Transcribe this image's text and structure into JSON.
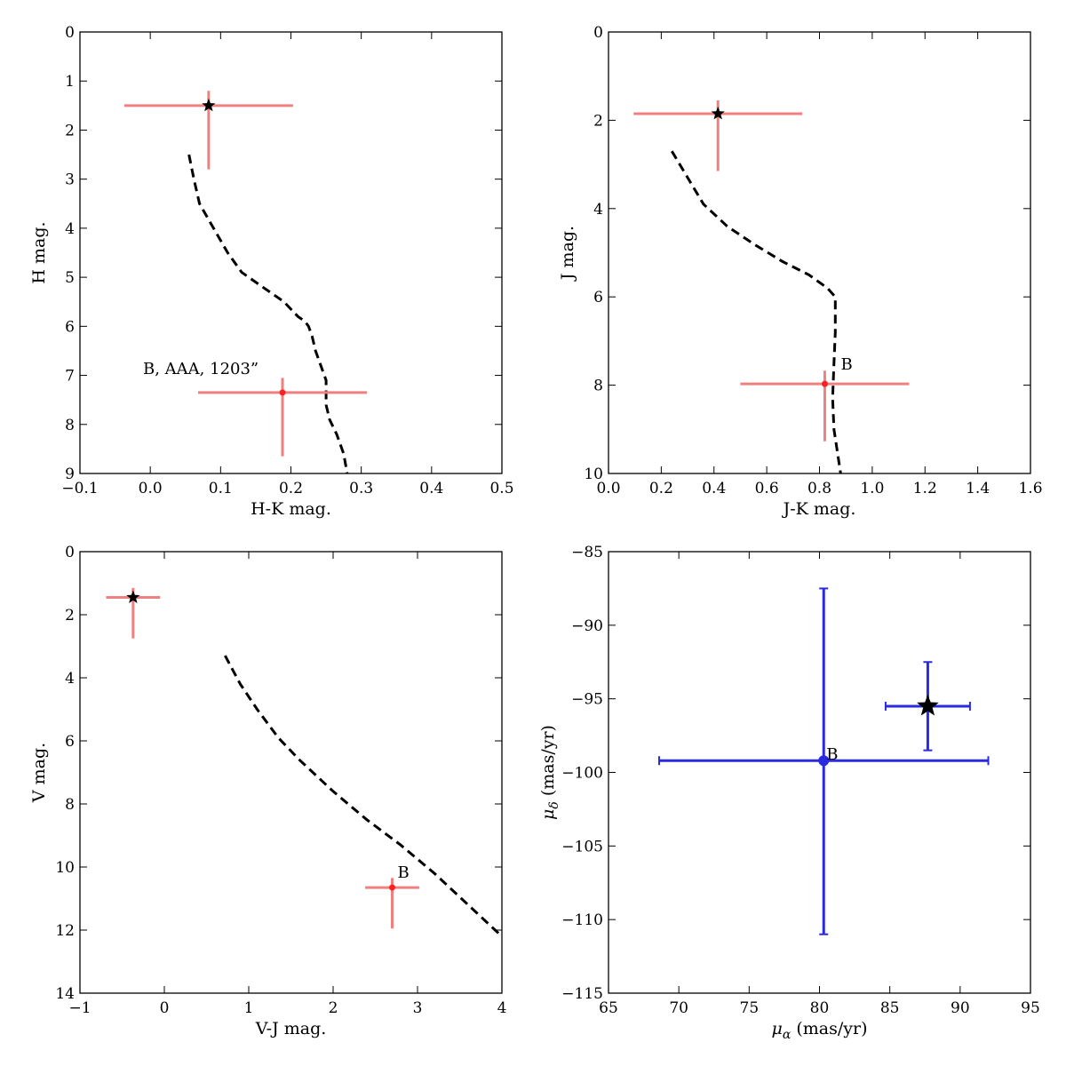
{
  "figure": {
    "title": ""
  },
  "chart_data": [
    {
      "id": "hk",
      "type": "scatter",
      "xlabel": "H-K mag.",
      "ylabel": "H mag.",
      "xlim": [
        -0.1,
        0.5
      ],
      "ylim": [
        0,
        9
      ],
      "y_inverted": true,
      "xticks": [
        -0.1,
        0.0,
        0.1,
        0.2,
        0.3,
        0.4,
        0.5
      ],
      "xtick_labels": [
        "−0.1",
        "0.0",
        "0.1",
        "0.2",
        "0.3",
        "0.4",
        "0.5"
      ],
      "yticks": [
        0,
        1,
        2,
        3,
        4,
        5,
        6,
        7,
        8,
        9
      ],
      "ytick_labels": [
        "0",
        "1",
        "2",
        "3",
        "4",
        "5",
        "6",
        "7",
        "8",
        "9"
      ],
      "curve": {
        "style": "dashed",
        "color": "#000000",
        "x": [
          0.055,
          0.062,
          0.07,
          0.09,
          0.11,
          0.13,
          0.16,
          0.19,
          0.21,
          0.22,
          0.225,
          0.23,
          0.235,
          0.245,
          0.25,
          0.25,
          0.255,
          0.265,
          0.275,
          0.28
        ],
        "y": [
          2.5,
          3.0,
          3.5,
          4.0,
          4.5,
          4.9,
          5.2,
          5.5,
          5.8,
          5.9,
          6.0,
          6.2,
          6.5,
          6.9,
          7.1,
          7.6,
          7.9,
          8.2,
          8.6,
          9.0
        ]
      },
      "points": [
        {
          "name": "primary",
          "marker": "star",
          "x": 0.083,
          "y": 1.5,
          "xerr": [
            0.12,
            0.12
          ],
          "yerr": [
            0.3,
            1.3
          ],
          "label": ""
        },
        {
          "name": "B",
          "marker": "dot",
          "x": 0.188,
          "y": 7.35,
          "xerr": [
            0.12,
            0.12
          ],
          "yerr": [
            0.3,
            1.3
          ],
          "label": "B, AAA, 1203”"
        }
      ],
      "error_color": "#f08080",
      "marker_color_dot": "#ff2020"
    },
    {
      "id": "jk",
      "type": "scatter",
      "xlabel": "J-K mag.",
      "ylabel": "J mag.",
      "xlim": [
        0.0,
        1.6
      ],
      "ylim": [
        0,
        10
      ],
      "y_inverted": true,
      "xticks": [
        0.0,
        0.2,
        0.4,
        0.6,
        0.8,
        1.0,
        1.2,
        1.4,
        1.6
      ],
      "xtick_labels": [
        "0.0",
        "0.2",
        "0.4",
        "0.6",
        "0.8",
        "1.0",
        "1.2",
        "1.4",
        "1.6"
      ],
      "yticks": [
        0,
        2,
        4,
        6,
        8,
        10
      ],
      "ytick_labels": [
        "0",
        "2",
        "4",
        "6",
        "8",
        "10"
      ],
      "curve": {
        "style": "dashed",
        "color": "#000000",
        "x": [
          0.24,
          0.3,
          0.36,
          0.45,
          0.55,
          0.66,
          0.76,
          0.83,
          0.86,
          0.86,
          0.855,
          0.85,
          0.855,
          0.87,
          0.88
        ],
        "y": [
          2.7,
          3.3,
          3.9,
          4.4,
          4.8,
          5.2,
          5.5,
          5.8,
          6.0,
          6.8,
          7.5,
          8.3,
          9.0,
          9.6,
          10.0
        ]
      },
      "points": [
        {
          "name": "primary",
          "marker": "star",
          "x": 0.415,
          "y": 1.85,
          "xerr": [
            0.32,
            0.32
          ],
          "yerr": [
            0.3,
            1.3
          ],
          "label": ""
        },
        {
          "name": "B",
          "marker": "dot",
          "x": 0.82,
          "y": 7.97,
          "xerr": [
            0.32,
            0.32
          ],
          "yerr": [
            0.3,
            1.3
          ],
          "label": "B"
        }
      ],
      "error_color": "#f08080",
      "marker_color_dot": "#ff2020"
    },
    {
      "id": "vj",
      "type": "scatter",
      "xlabel": "V-J mag.",
      "ylabel": "V mag.",
      "xlim": [
        -1,
        4
      ],
      "ylim": [
        0,
        14
      ],
      "y_inverted": true,
      "xticks": [
        -1,
        0,
        1,
        2,
        3,
        4
      ],
      "xtick_labels": [
        "−1",
        "0",
        "1",
        "2",
        "3",
        "4"
      ],
      "yticks": [
        0,
        2,
        4,
        6,
        8,
        10,
        12,
        14
      ],
      "ytick_labels": [
        "0",
        "2",
        "4",
        "6",
        "8",
        "10",
        "12",
        "14"
      ],
      "curve": {
        "style": "dashed",
        "color": "#000000",
        "x": [
          0.72,
          0.9,
          1.1,
          1.35,
          1.6,
          2.0,
          2.4,
          2.8,
          3.2,
          3.6,
          4.0
        ],
        "y": [
          3.3,
          4.2,
          5.0,
          5.9,
          6.6,
          7.6,
          8.5,
          9.3,
          10.2,
          11.2,
          12.2
        ]
      },
      "points": [
        {
          "name": "primary",
          "marker": "star",
          "x": -0.37,
          "y": 1.45,
          "xerr": [
            0.32,
            0.32
          ],
          "yerr": [
            0.3,
            1.3
          ],
          "label": ""
        },
        {
          "name": "B",
          "marker": "dot",
          "x": 2.7,
          "y": 10.65,
          "xerr": [
            0.32,
            0.32
          ],
          "yerr": [
            0.3,
            1.3
          ],
          "label": "B"
        }
      ],
      "error_color": "#f08080",
      "marker_color_dot": "#ff2020"
    },
    {
      "id": "pm",
      "type": "scatter",
      "xlabel": "μ",
      "xlabel_sub": "α",
      "xlabel_suffix": " (mas/yr)",
      "ylabel": "μ",
      "ylabel_sub": "δ",
      "ylabel_suffix": " (mas/yr)",
      "xlim": [
        65,
        95
      ],
      "ylim": [
        -115,
        -85
      ],
      "y_inverted": false,
      "xticks": [
        65,
        70,
        75,
        80,
        85,
        90,
        95
      ],
      "xtick_labels": [
        "65",
        "70",
        "75",
        "80",
        "85",
        "90",
        "95"
      ],
      "yticks": [
        -115,
        -110,
        -105,
        -100,
        -95,
        -90,
        -85
      ],
      "ytick_labels": [
        "−115",
        "−110",
        "−105",
        "−100",
        "−95",
        "−90",
        "−85"
      ],
      "points": [
        {
          "name": "primary",
          "marker": "star-large",
          "x": 87.7,
          "y": -95.5,
          "xerr": [
            3.0,
            3.0
          ],
          "yerr": [
            3.0,
            3.0
          ],
          "label": ""
        },
        {
          "name": "B",
          "marker": "dot-blue",
          "x": 80.3,
          "y": -99.2,
          "xerr": [
            11.7,
            11.7
          ],
          "yerr": [
            11.8,
            11.7
          ],
          "label": "B"
        }
      ],
      "error_color": "#2a2ae0",
      "marker_color_dot": "#2a2ae0",
      "caps": true
    }
  ]
}
